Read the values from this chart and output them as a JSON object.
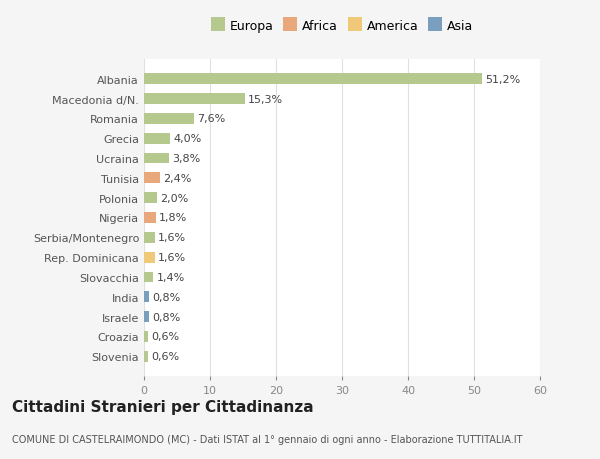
{
  "countries": [
    "Albania",
    "Macedonia d/N.",
    "Romania",
    "Grecia",
    "Ucraina",
    "Tunisia",
    "Polonia",
    "Nigeria",
    "Serbia/Montenegro",
    "Rep. Dominicana",
    "Slovacchia",
    "India",
    "Israele",
    "Croazia",
    "Slovenia"
  ],
  "values": [
    51.2,
    15.3,
    7.6,
    4.0,
    3.8,
    2.4,
    2.0,
    1.8,
    1.6,
    1.6,
    1.4,
    0.8,
    0.8,
    0.6,
    0.6
  ],
  "labels": [
    "51,2%",
    "15,3%",
    "7,6%",
    "4,0%",
    "3,8%",
    "2,4%",
    "2,0%",
    "1,8%",
    "1,6%",
    "1,6%",
    "1,4%",
    "0,8%",
    "0,8%",
    "0,6%",
    "0,6%"
  ],
  "colors": [
    "#b5c98e",
    "#b5c98e",
    "#b5c98e",
    "#b5c98e",
    "#b5c98e",
    "#e8a87c",
    "#b5c98e",
    "#e8a87c",
    "#b5c98e",
    "#f0c87a",
    "#b5c98e",
    "#7a9ec0",
    "#7a9ec0",
    "#b5c98e",
    "#b5c98e"
  ],
  "legend_labels": [
    "Europa",
    "Africa",
    "America",
    "Asia"
  ],
  "legend_colors": [
    "#b5c98e",
    "#e8a87c",
    "#f0c87a",
    "#7a9ec0"
  ],
  "title": "Cittadini Stranieri per Cittadinanza",
  "subtitle": "COMUNE DI CASTELRAIMONDO (MC) - Dati ISTAT al 1° gennaio di ogni anno - Elaborazione TUTTITALIA.IT",
  "xlim": [
    0,
    60
  ],
  "xticks": [
    0,
    10,
    20,
    30,
    40,
    50,
    60
  ],
  "background_color": "#f5f5f5",
  "bar_background": "#ffffff",
  "grid_color": "#e0e0e0",
  "title_fontsize": 11,
  "subtitle_fontsize": 7,
  "label_fontsize": 8,
  "tick_fontsize": 8,
  "legend_fontsize": 9
}
